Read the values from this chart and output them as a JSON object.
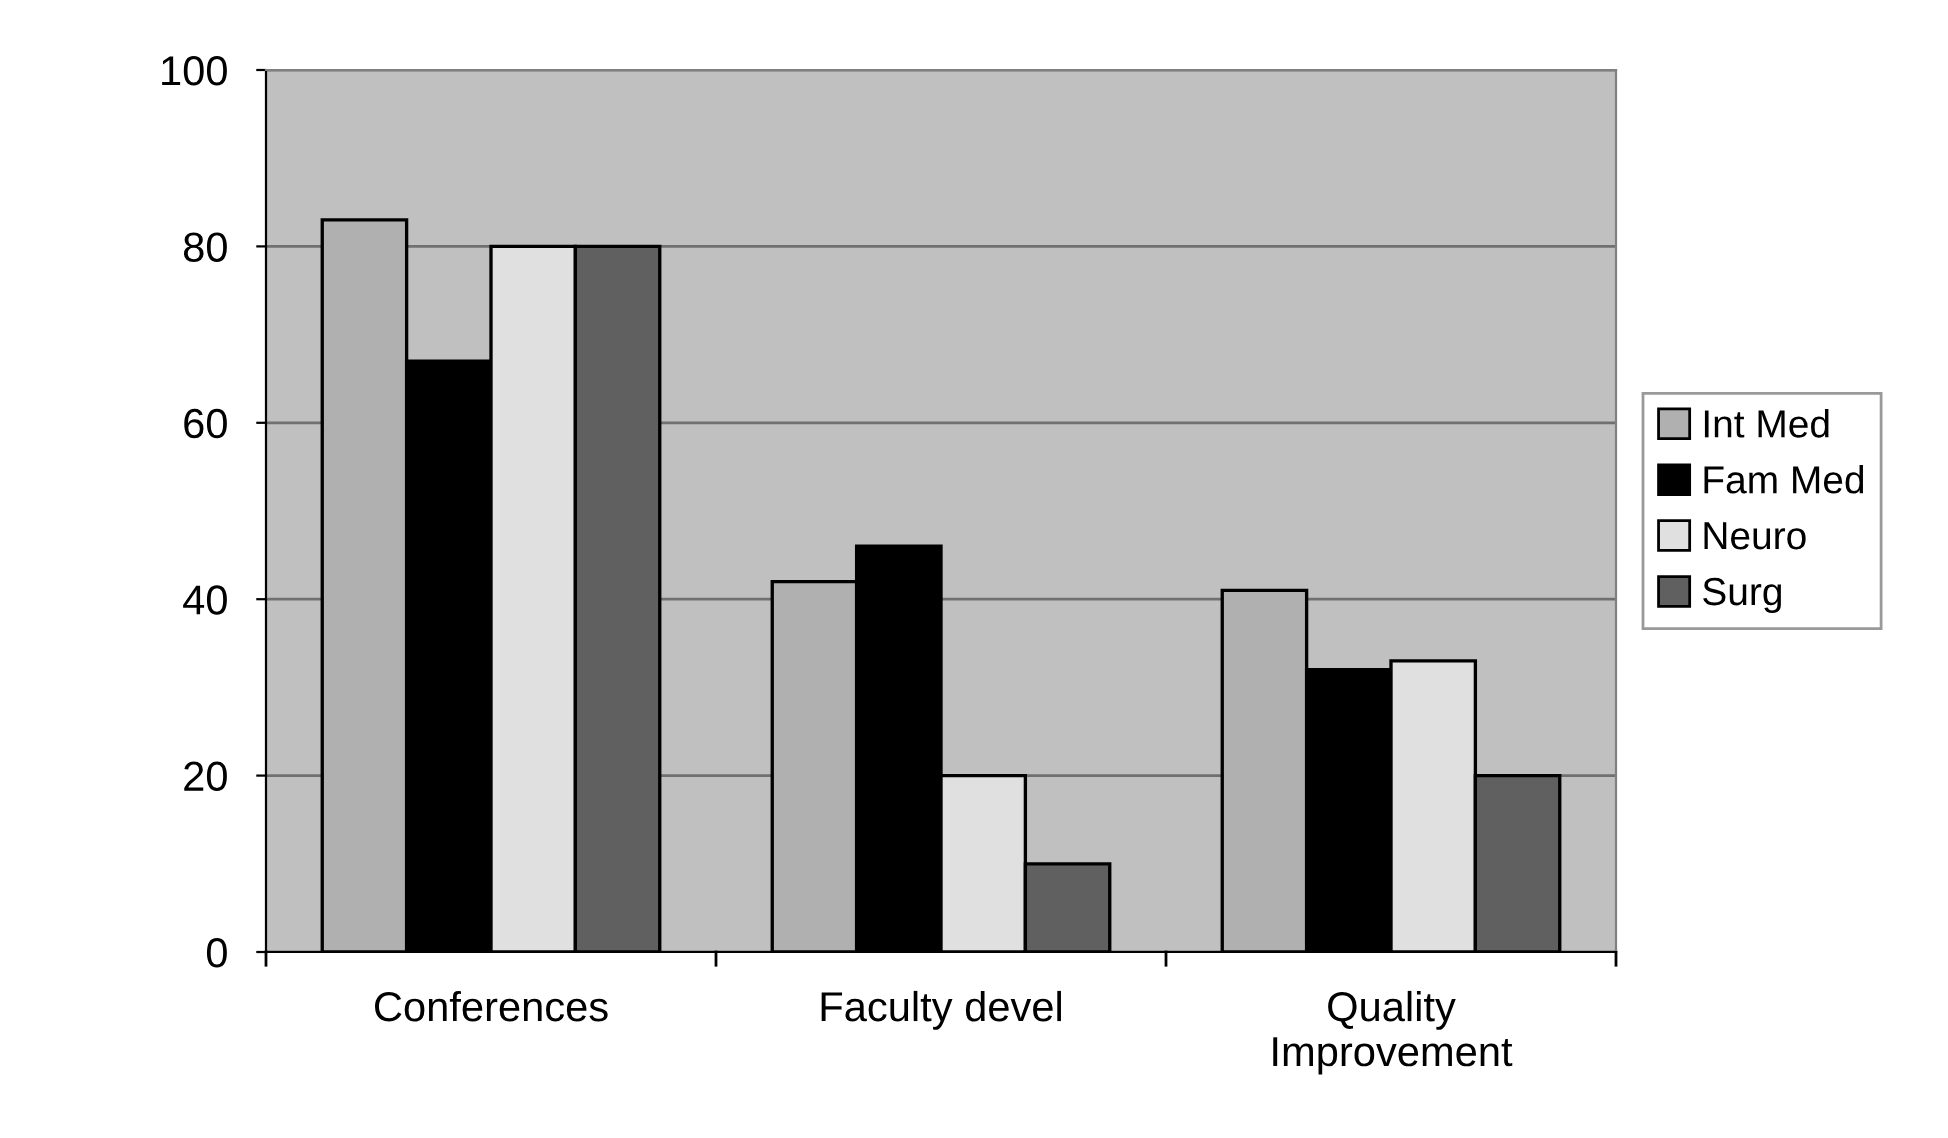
{
  "chart_data": {
    "type": "bar",
    "categories": [
      "Conferences",
      "Faculty devel",
      "Quality\nImprovement"
    ],
    "series": [
      {
        "name": "Int Med",
        "color": "#b0b0b0",
        "values": [
          83,
          42,
          41
        ]
      },
      {
        "name": "Fam Med",
        "color": "#000000",
        "values": [
          67,
          46,
          32
        ]
      },
      {
        "name": "Neuro",
        "color": "#e0e0e0",
        "values": [
          80,
          20,
          33
        ]
      },
      {
        "name": "Surg",
        "color": "#606060",
        "values": [
          80,
          10,
          20
        ]
      }
    ],
    "ylim": [
      0,
      100
    ],
    "yticks": [
      0,
      20,
      40,
      60,
      80,
      100
    ],
    "grid": "y",
    "legend": "right"
  }
}
